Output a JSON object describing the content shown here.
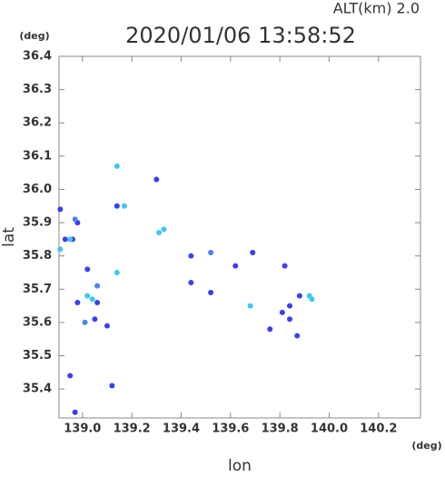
{
  "chart_data": {
    "type": "scatter",
    "annotation": "ALT(km)  2.0",
    "title": "2020/01/06 13:58:52",
    "y_unit": "(deg)",
    "x_unit": "(deg)",
    "ylabel": "lat",
    "xlabel": "lon",
    "xlim": [
      138.905,
      140.37
    ],
    "ylim": [
      35.313,
      36.4
    ],
    "xticks": [
      {
        "value": 139,
        "label": "139.0"
      },
      139.2,
      139.4,
      139.6,
      139.8,
      {
        "value": 140,
        "label": "140.0"
      },
      140.2
    ],
    "yticks": [
      35.4,
      35.5,
      35.6,
      35.7,
      35.8,
      35.9,
      {
        "value": 36,
        "label": "36.0"
      },
      36.1,
      36.2,
      36.3,
      36.4
    ],
    "series": [
      {
        "color": "#3a3ff0",
        "x": [
          138.91,
          138.98,
          138.93,
          138.96,
          139.02,
          138.98,
          139.06,
          139.05,
          139.1,
          139.12,
          138.95,
          138.97,
          139.14,
          139.3,
          139.44,
          139.62,
          139.69,
          139.82,
          139.88,
          139.84,
          139.81,
          139.84,
          139.87,
          139.76,
          139.52,
          139.44
        ],
        "values": [
          35.94,
          35.9,
          35.85,
          35.85,
          35.76,
          35.66,
          35.66,
          35.61,
          35.59,
          35.41,
          35.44,
          35.33,
          35.95,
          36.03,
          35.8,
          35.77,
          35.81,
          35.77,
          35.68,
          35.65,
          35.63,
          35.61,
          35.56,
          35.58,
          35.69,
          35.72
        ]
      },
      {
        "color": "#3ec8f0",
        "x": [
          139.14,
          139.17,
          139.02,
          139.04,
          138.91,
          138.95,
          139.14,
          139.31,
          139.33,
          139.68,
          139.93,
          139.92
        ],
        "values": [
          36.07,
          35.95,
          35.68,
          35.67,
          35.82,
          35.85,
          35.75,
          35.87,
          35.88,
          35.65,
          35.67,
          35.68
        ]
      },
      {
        "color": "#4a82f0",
        "x": [
          138.97,
          139.06,
          139.52,
          139.01
        ],
        "values": [
          35.91,
          35.71,
          35.81,
          35.6
        ]
      }
    ]
  }
}
